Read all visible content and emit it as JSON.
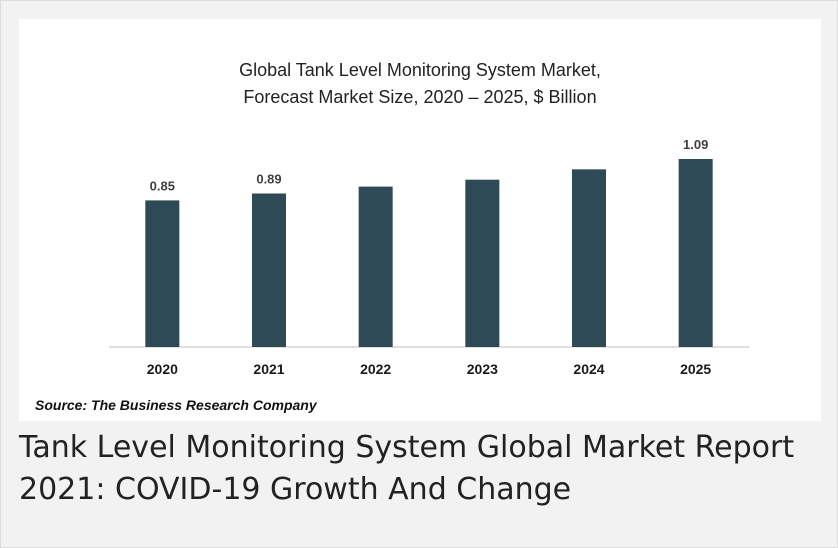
{
  "chart_data": {
    "type": "bar",
    "title_line1": "Global Tank Level Monitoring System Market,",
    "title_line2": "Forecast Market Size, 2020 – 2025, $ Billion",
    "categories": [
      "2020",
      "2021",
      "2022",
      "2023",
      "2024",
      "2025"
    ],
    "values": [
      0.85,
      0.89,
      0.93,
      0.97,
      1.03,
      1.09
    ],
    "data_labels": [
      "0.85",
      "0.89",
      "",
      "",
      "",
      "1.09"
    ],
    "bar_color": "#2e4a56",
    "xlabel": "",
    "ylabel": "",
    "grid": false,
    "legend": "none"
  },
  "source": "Source: The Business Research Company",
  "caption": "Tank Level Monitoring System Global Market Report 2021: COVID-19 Growth And Change"
}
